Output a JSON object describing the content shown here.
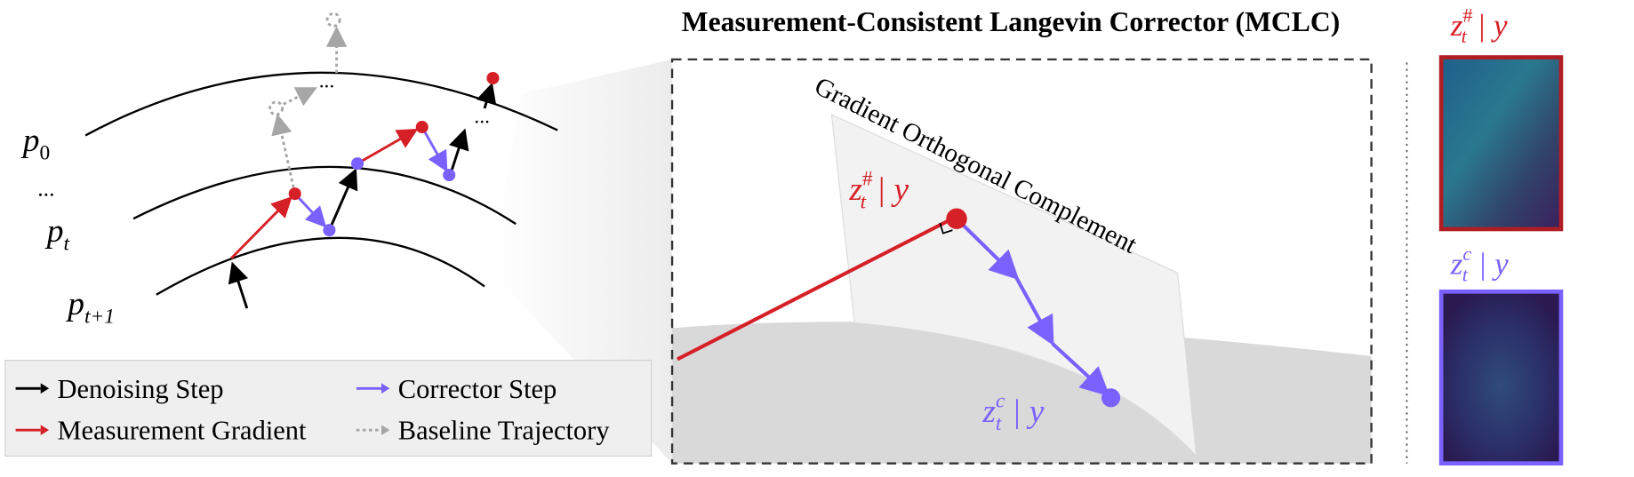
{
  "title": "Measurement-Consistent Langevin Corrector (MCLC)",
  "manifolds": [
    {
      "base": "p",
      "sub": "0"
    },
    {
      "base": "p",
      "sub": "t"
    },
    {
      "base": "p",
      "sub": "t+1"
    }
  ],
  "ellipsis": "...",
  "legend": [
    {
      "label": "Denoising Step",
      "color": "#000000"
    },
    {
      "label": "Corrector Step",
      "color": "#7b61ff"
    },
    {
      "label": "Measurement Gradient",
      "color": "#d62027"
    },
    {
      "label": "Baseline Trajectory",
      "color": "#a6a6a6"
    }
  ],
  "plane_label": "Gradient Orthogonal Complement",
  "points": [
    {
      "base": "z",
      "sub": "t",
      "sup": "#",
      "cond": "| y",
      "color": "#d62027"
    },
    {
      "base": "z",
      "sub": "t",
      "sup": "c",
      "cond": "| y",
      "color": "#7b61ff"
    }
  ]
}
